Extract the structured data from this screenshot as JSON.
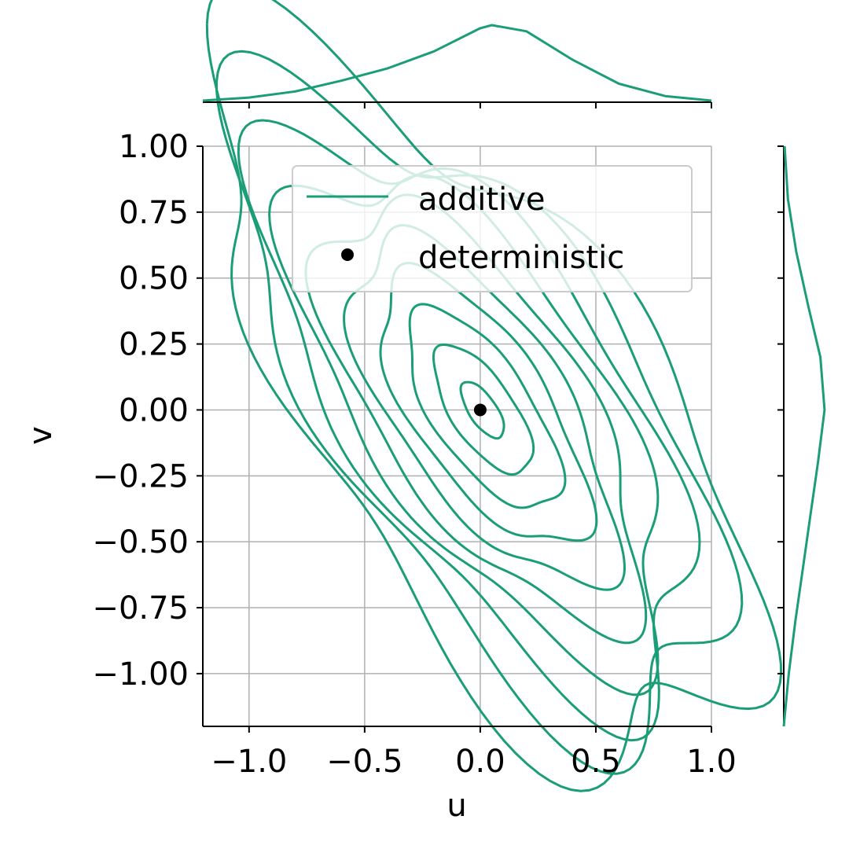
{
  "chart_data": {
    "type": "kde-joint",
    "xlabel": "u",
    "ylabel": "v",
    "xlim": [
      -1.2,
      1.0
    ],
    "ylim": [
      -1.2,
      1.0
    ],
    "x_ticks": [
      -1.0,
      -0.5,
      0.0,
      0.5,
      1.0
    ],
    "x_tick_labels": [
      "−1.0",
      "−0.5",
      "0.0",
      "0.5",
      "1.0"
    ],
    "y_ticks": [
      1.0,
      0.75,
      0.5,
      0.25,
      0.0,
      -0.25,
      -0.5,
      -0.75,
      -1.0
    ],
    "y_tick_labels": [
      "1.00",
      "0.75",
      "0.50",
      "0.25",
      "0.00",
      "−0.25",
      "−0.50",
      "−0.75",
      "−1.00"
    ],
    "grid": true,
    "legend": {
      "placement": "upper-center",
      "entries": [
        {
          "label": "additive",
          "kind": "line"
        },
        {
          "label": "deterministic",
          "kind": "point"
        }
      ]
    },
    "colors": {
      "additive": "#1b9e77",
      "deterministic": "#000000",
      "grid": "#b0b0b0"
    },
    "series": [
      {
        "name": "additive",
        "kind": "kde-contours",
        "center": [
          0.01,
          0.0
        ],
        "covariance": [
          [
            0.11,
            -0.085
          ],
          [
            -0.085,
            0.145
          ]
        ],
        "levels": 10
      },
      {
        "name": "deterministic",
        "kind": "point",
        "x": [
          0.0
        ],
        "y": [
          0.0
        ]
      }
    ],
    "marginal_x": {
      "x": [
        -1.2,
        -1.0,
        -0.8,
        -0.6,
        -0.4,
        -0.2,
        0.0,
        0.05,
        0.2,
        0.4,
        0.6,
        0.8,
        1.0
      ],
      "density": [
        0.02,
        0.06,
        0.14,
        0.28,
        0.44,
        0.66,
        0.96,
        1.0,
        0.92,
        0.55,
        0.24,
        0.08,
        0.02
      ]
    },
    "marginal_y": {
      "y": [
        -1.2,
        -1.0,
        -0.8,
        -0.6,
        -0.4,
        -0.2,
        0.0,
        0.2,
        0.4,
        0.6,
        0.8,
        1.0
      ],
      "density": [
        0.0,
        0.12,
        0.28,
        0.46,
        0.64,
        0.82,
        0.98,
        0.88,
        0.58,
        0.3,
        0.1,
        0.02
      ]
    }
  }
}
